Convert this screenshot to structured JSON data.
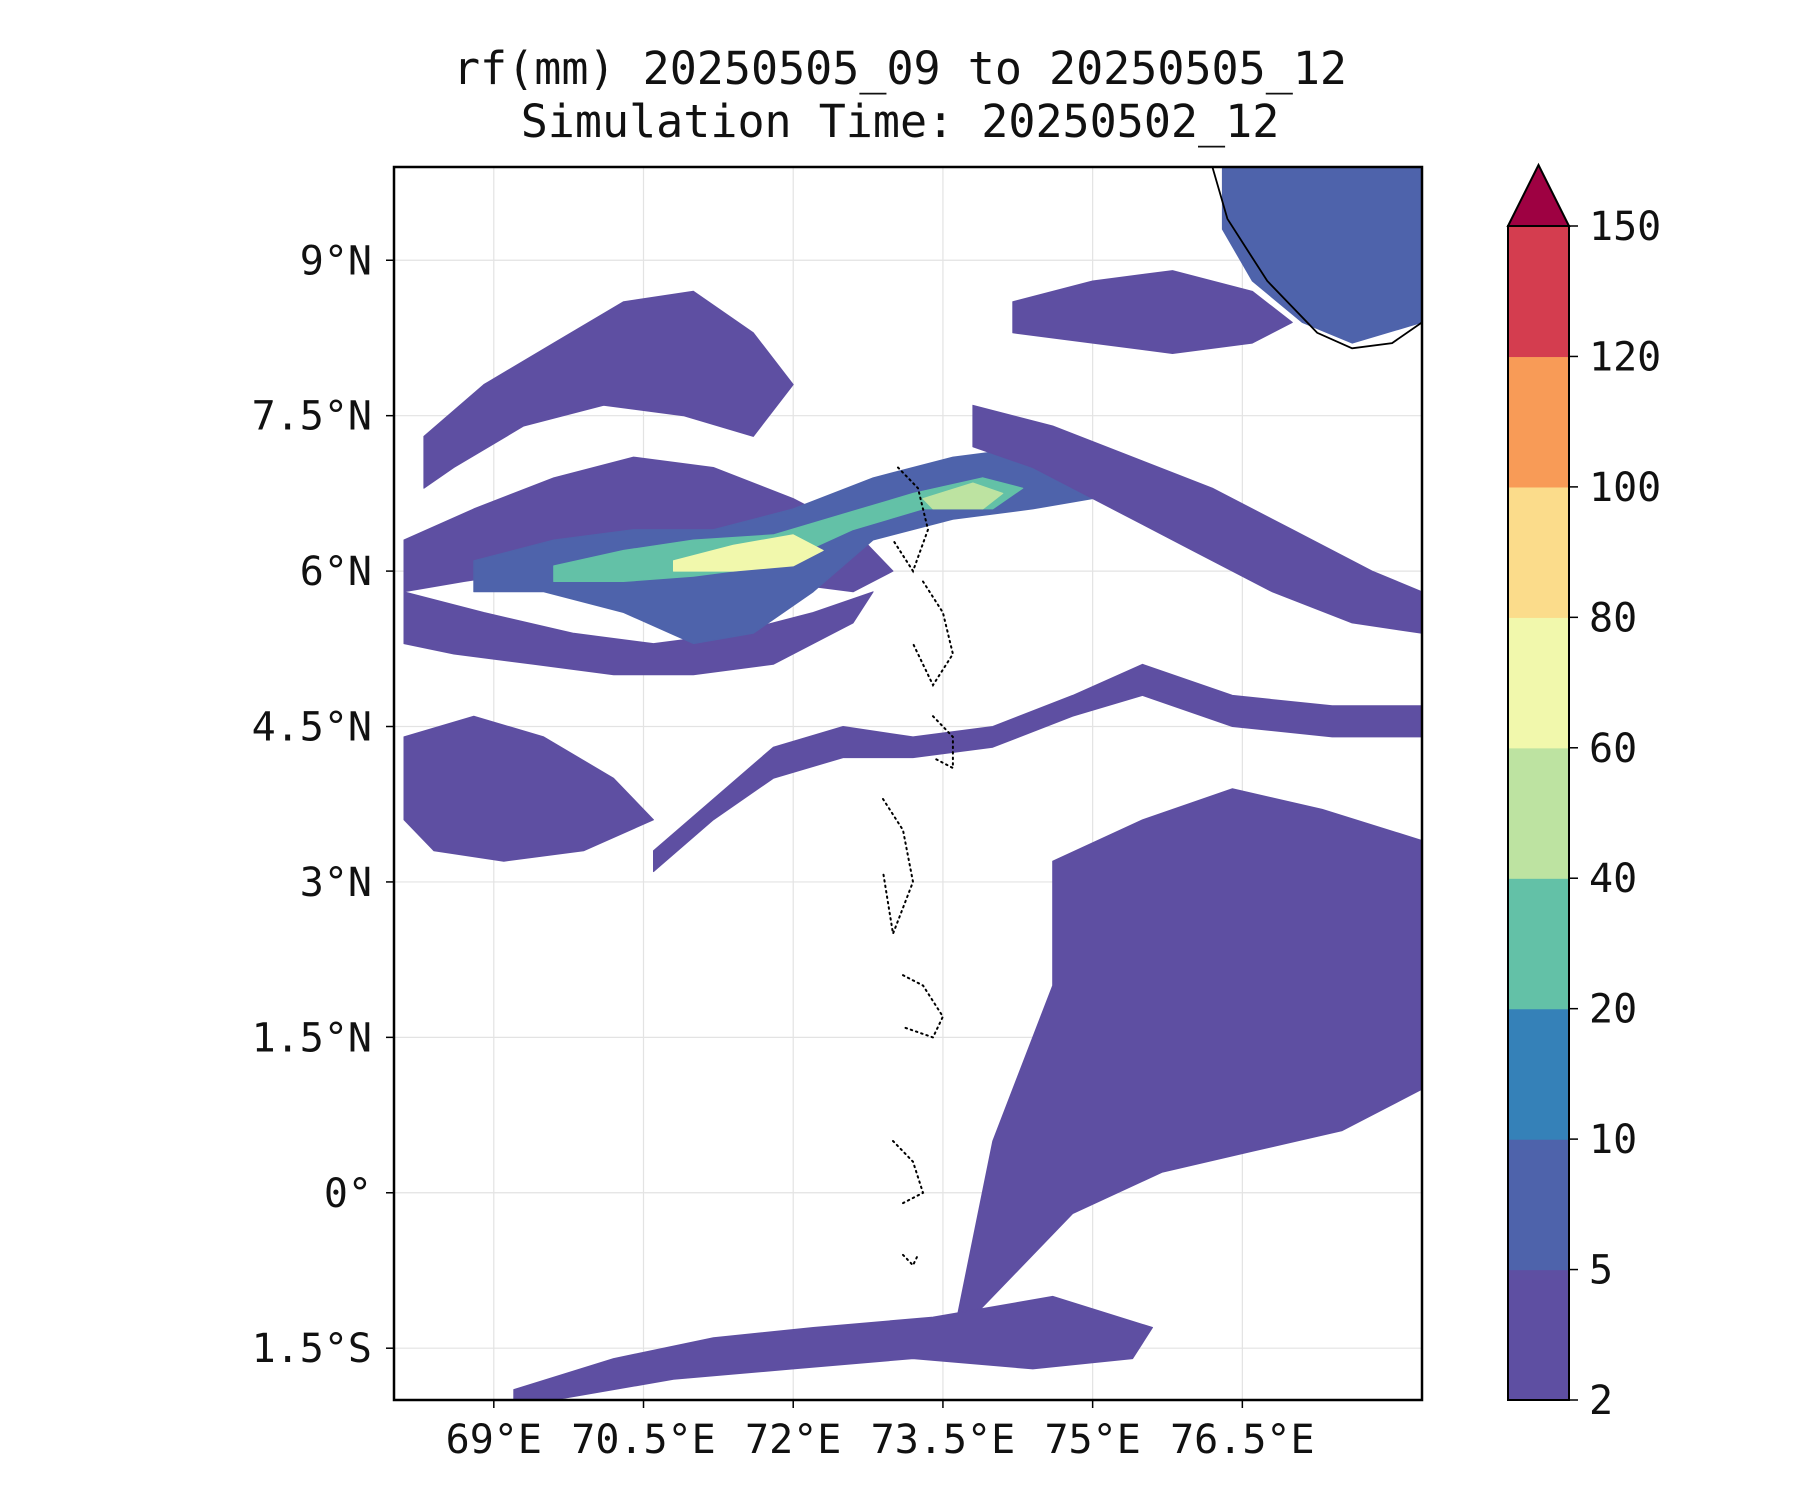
{
  "title": {
    "line1": "rf(mm) 20250505_09 to 20250505_12",
    "line2": "Simulation Time: 20250502_12"
  },
  "map": {
    "variable": "rf(mm)",
    "lon_range": [
      68.0,
      78.3
    ],
    "lat_range": [
      -2.0,
      9.9
    ],
    "lon_ticks": [
      69,
      70.5,
      72,
      73.5,
      75,
      76.5
    ],
    "lon_tick_labels": [
      "69°E",
      "70.5°E",
      "72°E",
      "73.5°E",
      "75°E",
      "76.5°E"
    ],
    "lat_ticks": [
      9,
      7.5,
      6,
      4.5,
      3,
      1.5,
      0,
      -1.5
    ],
    "lat_tick_labels": [
      "9°N",
      "7.5°N",
      "6°N",
      "4.5°N",
      "3°N",
      "1.5°N",
      "0°",
      "1.5°S"
    ],
    "gridlines": true,
    "coastline_color": "#000000",
    "rain_features": [
      {
        "name": "western-band-north",
        "level": 0,
        "lon": [
          68.1,
          68.8,
          69.6,
          70.4,
          71.2,
          72.0,
          72.6,
          73.0,
          72.6,
          71.8,
          71.0,
          70.2,
          69.4,
          68.7,
          68.1
        ],
        "lat": [
          6.3,
          6.6,
          6.9,
          7.1,
          7.0,
          6.7,
          6.4,
          6.0,
          5.8,
          5.9,
          6.1,
          6.1,
          6.0,
          5.9,
          5.8
        ]
      },
      {
        "name": "western-band-south",
        "level": 0,
        "lon": [
          68.1,
          68.9,
          69.8,
          70.6,
          71.4,
          72.2,
          72.8,
          72.6,
          71.8,
          71.0,
          70.2,
          69.4,
          68.6,
          68.1
        ],
        "lat": [
          5.8,
          5.6,
          5.4,
          5.3,
          5.4,
          5.6,
          5.8,
          5.5,
          5.1,
          5.0,
          5.0,
          5.1,
          5.2,
          5.3
        ]
      },
      {
        "name": "northwest-streaks",
        "level": 0,
        "lon": [
          68.3,
          68.9,
          69.6,
          70.3,
          71.0,
          71.6,
          72.0,
          71.6,
          70.9,
          70.1,
          69.3,
          68.6,
          68.3
        ],
        "lat": [
          7.3,
          7.8,
          8.2,
          8.6,
          8.7,
          8.3,
          7.8,
          7.3,
          7.5,
          7.6,
          7.4,
          7.0,
          6.8
        ]
      },
      {
        "name": "southwest-cells",
        "level": 0,
        "lon": [
          68.1,
          68.8,
          69.5,
          70.2,
          70.6,
          69.9,
          69.1,
          68.4,
          68.1
        ],
        "lat": [
          4.4,
          4.6,
          4.4,
          4.0,
          3.6,
          3.3,
          3.2,
          3.3,
          3.6
        ]
      },
      {
        "name": "long-band-south",
        "level": 0,
        "lon": [
          70.6,
          71.2,
          71.8,
          72.5,
          73.2,
          74.0,
          74.8,
          75.5,
          76.4,
          77.4,
          78.3,
          78.3,
          77.4,
          76.4,
          75.5,
          74.8,
          74.0,
          73.2,
          72.5,
          71.8,
          71.2,
          70.6
        ],
        "lat": [
          3.3,
          3.8,
          4.3,
          4.5,
          4.4,
          4.5,
          4.8,
          5.1,
          4.8,
          4.7,
          4.7,
          4.4,
          4.4,
          4.5,
          4.8,
          4.6,
          4.3,
          4.2,
          4.2,
          4.0,
          3.6,
          3.1
        ]
      },
      {
        "name": "central-jet-outer",
        "level": 1,
        "lon": [
          68.8,
          69.6,
          70.4,
          71.2,
          72.0,
          72.8,
          73.6,
          74.4,
          75.0,
          75.0,
          74.4,
          73.6,
          72.8,
          72.2,
          71.6,
          71.0,
          70.3,
          69.5,
          68.8
        ],
        "lat": [
          6.1,
          6.3,
          6.4,
          6.4,
          6.6,
          6.9,
          7.1,
          7.2,
          7.0,
          6.7,
          6.6,
          6.5,
          6.3,
          5.8,
          5.4,
          5.3,
          5.6,
          5.8,
          5.8
        ]
      },
      {
        "name": "central-jet-inner",
        "level": 3,
        "lon": [
          69.6,
          70.3,
          71.0,
          71.8,
          72.5,
          73.2,
          73.9,
          74.3,
          74.0,
          73.3,
          72.6,
          71.8,
          71.0,
          70.3,
          69.6
        ],
        "lat": [
          6.05,
          6.2,
          6.3,
          6.35,
          6.55,
          6.75,
          6.9,
          6.8,
          6.6,
          6.6,
          6.4,
          6.05,
          5.95,
          5.9,
          5.9
        ]
      },
      {
        "name": "central-jet-core",
        "level": 5,
        "lon": [
          70.8,
          71.4,
          72.0,
          72.3,
          72.0,
          71.4,
          70.8
        ],
        "lat": [
          6.1,
          6.25,
          6.35,
          6.2,
          6.05,
          6.0,
          6.0
        ]
      },
      {
        "name": "central-jet-core-east",
        "level": 4,
        "lon": [
          73.3,
          73.8,
          74.1,
          73.9,
          73.4
        ],
        "lat": [
          6.7,
          6.85,
          6.75,
          6.6,
          6.6
        ]
      },
      {
        "name": "east-middle-band",
        "level": 0,
        "lon": [
          73.8,
          74.6,
          75.4,
          76.2,
          77.0,
          77.8,
          78.3,
          78.3,
          77.6,
          76.8,
          76.0,
          75.2,
          74.4,
          73.8
        ],
        "lat": [
          7.6,
          7.4,
          7.1,
          6.8,
          6.4,
          6.0,
          5.8,
          5.4,
          5.5,
          5.8,
          6.2,
          6.6,
          7.0,
          7.2
        ]
      },
      {
        "name": "north-east-cells",
        "level": 0,
        "lon": [
          74.2,
          75.0,
          75.8,
          76.6,
          77.0,
          76.6,
          75.8,
          75.0,
          74.2
        ],
        "lat": [
          8.6,
          8.8,
          8.9,
          8.7,
          8.4,
          8.2,
          8.1,
          8.2,
          8.3
        ]
      },
      {
        "name": "kerala-coast-rain",
        "level": 1,
        "lon": [
          76.3,
          76.9,
          77.6,
          78.3,
          78.3,
          77.6,
          77.1,
          76.6,
          76.3
        ],
        "lat": [
          9.9,
          9.9,
          9.9,
          9.9,
          8.4,
          8.2,
          8.4,
          8.8,
          9.3
        ]
      },
      {
        "name": "southeast-streaks",
        "level": 0,
        "lon": [
          74.6,
          75.5,
          76.4,
          77.3,
          78.3,
          78.3,
          77.5,
          76.6,
          75.7,
          74.8,
          74.2,
          73.6,
          74.0,
          74.6
        ],
        "lat": [
          3.2,
          3.6,
          3.9,
          3.7,
          3.4,
          1.0,
          0.6,
          0.4,
          0.2,
          -0.2,
          -0.8,
          -1.4,
          0.5,
          2.0
        ]
      },
      {
        "name": "southern-arc",
        "level": 0,
        "lon": [
          69.2,
          70.2,
          71.2,
          72.2,
          73.4,
          74.6,
          75.6,
          75.4,
          74.4,
          73.2,
          72.0,
          70.8,
          69.6,
          69.2
        ],
        "lat": [
          -1.9,
          -1.6,
          -1.4,
          -1.3,
          -1.2,
          -1.0,
          -1.3,
          -1.6,
          -1.7,
          -1.6,
          -1.7,
          -1.8,
          -2.0,
          -2.0
        ]
      }
    ],
    "maldives_atolls": [
      {
        "name": "atoll-north",
        "lon": [
          73.05,
          73.25,
          73.35,
          73.2,
          73.0
        ],
        "lat": [
          7.0,
          6.8,
          6.4,
          6.0,
          6.3
        ]
      },
      {
        "name": "atoll-central",
        "lon": [
          73.3,
          73.5,
          73.6,
          73.4,
          73.2
        ],
        "lat": [
          5.9,
          5.6,
          5.2,
          4.9,
          5.3
        ]
      },
      {
        "name": "atoll-male",
        "lon": [
          73.4,
          73.6,
          73.6,
          73.4
        ],
        "lat": [
          4.6,
          4.4,
          4.1,
          4.2
        ]
      },
      {
        "name": "atoll-south-central",
        "lon": [
          72.9,
          73.1,
          73.2,
          73.0,
          72.9
        ],
        "lat": [
          3.8,
          3.5,
          3.0,
          2.5,
          3.1
        ]
      },
      {
        "name": "atoll-huvadhu",
        "lon": [
          73.1,
          73.3,
          73.5,
          73.4,
          73.1
        ],
        "lat": [
          2.1,
          2.0,
          1.7,
          1.5,
          1.6
        ]
      },
      {
        "name": "atoll-fuvahmulah",
        "lon": [
          73.0,
          73.2,
          73.3,
          73.1
        ],
        "lat": [
          0.5,
          0.3,
          0.0,
          -0.1
        ]
      },
      {
        "name": "atoll-addu",
        "lon": [
          73.1,
          73.2,
          73.25
        ],
        "lat": [
          -0.6,
          -0.7,
          -0.6
        ]
      }
    ],
    "coastline": {
      "name": "india-sri-lanka-coast",
      "lon": [
        76.2,
        76.35,
        76.55,
        76.75,
        76.95,
        77.25,
        77.6,
        78.0,
        78.3
      ],
      "lat": [
        9.9,
        9.4,
        9.1,
        8.8,
        8.6,
        8.3,
        8.15,
        8.2,
        8.4
      ]
    }
  },
  "colorbar": {
    "levels": [
      2,
      5,
      10,
      20,
      40,
      60,
      80,
      100,
      120,
      150
    ],
    "tick_labels": [
      "2",
      "5",
      "10",
      "20",
      "40",
      "60",
      "80",
      "100",
      "120",
      "150"
    ],
    "colors": [
      "#5e4fa2",
      "#4e63ab",
      "#3581b8",
      "#63c1a7",
      "#bde3a1",
      "#f1f8ac",
      "#fbdc8b",
      "#f89b57",
      "#d43d4f"
    ],
    "extend_color": "#9e0142",
    "extend": "max"
  }
}
